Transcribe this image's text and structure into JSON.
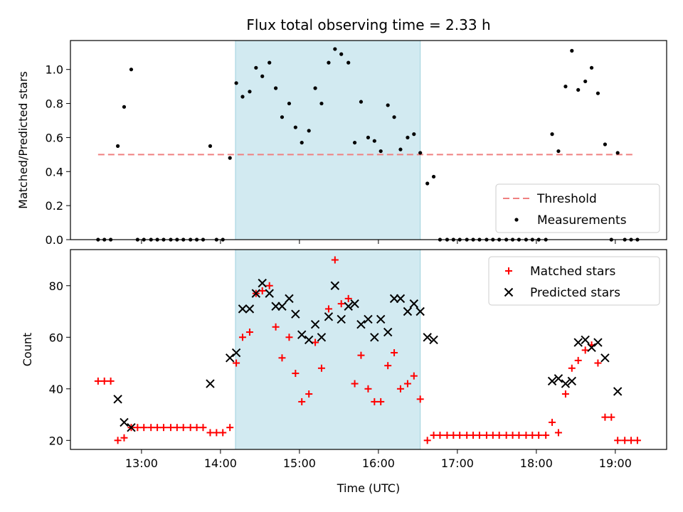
{
  "chart_data": {
    "type": "scatter",
    "title": "Flux total observing time = 2.33 h",
    "xlabel": "Time (UTC)",
    "x_tick_labels": [
      "13:00",
      "14:00",
      "15:00",
      "16:00",
      "17:00",
      "18:00",
      "19:00"
    ],
    "x_tick_values": [
      13,
      14,
      15,
      16,
      17,
      18,
      19
    ],
    "xlim": [
      12.1,
      19.65
    ],
    "highlight_span": [
      14.19,
      16.53
    ],
    "highlight_color": "#add8e6",
    "top": {
      "ylabel": "Matched/Predicted stars",
      "ylim": [
        0,
        1.17
      ],
      "y_ticks": [
        0.0,
        0.2,
        0.4,
        0.6,
        0.8,
        1.0
      ],
      "y_tick_labels": [
        "0.0",
        "0.2",
        "0.4",
        "0.6",
        "0.8",
        "1.0"
      ],
      "threshold": {
        "name": "Threshold",
        "value": 0.5,
        "x_range": [
          12.45,
          19.25
        ],
        "color": "#f08080"
      },
      "legend": {
        "placement": "lower-right",
        "entries": [
          "Threshold",
          "Measurements"
        ]
      },
      "measurements": {
        "name": "Measurements",
        "color": "#000000",
        "x": [
          12.45,
          12.53,
          12.61,
          12.7,
          12.78,
          12.87,
          12.95,
          13.03,
          13.12,
          13.2,
          13.28,
          13.37,
          13.45,
          13.53,
          13.62,
          13.7,
          13.78,
          13.87,
          13.95,
          14.03,
          14.12,
          14.2,
          14.28,
          14.37,
          14.45,
          14.53,
          14.62,
          14.7,
          14.78,
          14.87,
          14.95,
          15.03,
          15.12,
          15.2,
          15.28,
          15.37,
          15.45,
          15.53,
          15.62,
          15.7,
          15.78,
          15.87,
          15.95,
          16.03,
          16.12,
          16.2,
          16.28,
          16.37,
          16.45,
          16.53,
          16.62,
          16.7,
          16.78,
          16.87,
          16.95,
          17.03,
          17.12,
          17.2,
          17.28,
          17.37,
          17.45,
          17.53,
          17.62,
          17.7,
          17.78,
          17.87,
          17.95,
          18.03,
          18.12,
          18.2,
          18.28,
          18.37,
          18.45,
          18.53,
          18.62,
          18.7,
          18.78,
          18.87,
          18.95,
          19.03,
          19.12,
          19.2,
          19.28
        ],
        "y": [
          0.0,
          0.0,
          0.0,
          0.55,
          0.78,
          1.0,
          0.0,
          0.0,
          0.0,
          0.0,
          0.0,
          0.0,
          0.0,
          0.0,
          0.0,
          0.0,
          0.0,
          0.55,
          0.0,
          0.0,
          0.48,
          0.92,
          0.84,
          0.87,
          1.01,
          0.96,
          1.04,
          0.89,
          0.72,
          0.8,
          0.66,
          0.57,
          0.64,
          0.89,
          0.8,
          1.04,
          1.12,
          1.09,
          1.04,
          0.57,
          0.81,
          0.6,
          0.58,
          0.52,
          0.79,
          0.72,
          0.53,
          0.6,
          0.62,
          0.51,
          0.33,
          0.37,
          0.0,
          0.0,
          0.0,
          0.0,
          0.0,
          0.0,
          0.0,
          0.0,
          0.0,
          0.0,
          0.0,
          0.0,
          0.0,
          0.0,
          0.0,
          0.0,
          0.0,
          0.62,
          0.52,
          0.9,
          1.11,
          0.88,
          0.93,
          1.01,
          0.86,
          0.56,
          0.0,
          0.51,
          0.0,
          0.0,
          0.0
        ]
      }
    },
    "bottom": {
      "ylabel": "Count",
      "ylim": [
        16.5,
        94
      ],
      "y_ticks": [
        20,
        40,
        60,
        80
      ],
      "y_tick_labels": [
        "20",
        "40",
        "60",
        "80"
      ],
      "legend": {
        "placement": "upper-right",
        "entries": [
          "Matched stars",
          "Predicted stars"
        ]
      },
      "matched": {
        "name": "Matched stars",
        "color": "#ff0000",
        "x": [
          12.45,
          12.53,
          12.61,
          12.7,
          12.78,
          12.87,
          12.95,
          13.03,
          13.12,
          13.2,
          13.28,
          13.37,
          13.45,
          13.53,
          13.62,
          13.7,
          13.78,
          13.87,
          13.95,
          14.03,
          14.12,
          14.2,
          14.28,
          14.37,
          14.45,
          14.53,
          14.62,
          14.7,
          14.78,
          14.87,
          14.95,
          15.03,
          15.12,
          15.2,
          15.28,
          15.37,
          15.45,
          15.53,
          15.62,
          15.7,
          15.78,
          15.87,
          15.95,
          16.03,
          16.12,
          16.2,
          16.28,
          16.37,
          16.45,
          16.53,
          16.62,
          16.7,
          16.78,
          16.87,
          16.95,
          17.03,
          17.12,
          17.2,
          17.28,
          17.37,
          17.45,
          17.53,
          17.62,
          17.7,
          17.78,
          17.87,
          17.95,
          18.03,
          18.12,
          18.2,
          18.28,
          18.37,
          18.45,
          18.53,
          18.62,
          18.7,
          18.78,
          18.87,
          18.95,
          19.03,
          19.12,
          19.2,
          19.28
        ],
        "y": [
          43,
          43,
          43,
          20,
          21,
          25,
          25,
          25,
          25,
          25,
          25,
          25,
          25,
          25,
          25,
          25,
          25,
          23,
          23,
          23,
          25,
          50,
          60,
          62,
          77,
          78,
          80,
          64,
          52,
          60,
          46,
          35,
          38,
          58,
          48,
          71,
          90,
          73,
          75,
          42,
          53,
          40,
          35,
          35,
          49,
          54,
          40,
          42,
          45,
          36,
          20,
          22,
          22,
          22,
          22,
          22,
          22,
          22,
          22,
          22,
          22,
          22,
          22,
          22,
          22,
          22,
          22,
          22,
          22,
          27,
          23,
          38,
          48,
          51,
          55,
          57,
          50,
          29,
          29,
          20,
          20,
          20,
          20
        ]
      },
      "predicted": {
        "name": "Predicted stars",
        "color": "#000000",
        "x": [
          12.7,
          12.78,
          12.87,
          13.87,
          14.12,
          14.2,
          14.28,
          14.37,
          14.45,
          14.53,
          14.62,
          14.7,
          14.78,
          14.87,
          14.95,
          15.03,
          15.12,
          15.2,
          15.28,
          15.37,
          15.45,
          15.53,
          15.62,
          15.7,
          15.78,
          15.87,
          15.95,
          16.03,
          16.12,
          16.2,
          16.28,
          16.37,
          16.45,
          16.53,
          16.62,
          16.7,
          18.2,
          18.28,
          18.37,
          18.45,
          18.53,
          18.62,
          18.7,
          18.78,
          18.87,
          19.03
        ],
        "y": [
          36,
          27,
          25,
          42,
          52,
          54,
          71,
          71,
          77,
          81,
          77,
          72,
          72,
          75,
          69,
          61,
          59,
          65,
          60,
          68,
          80,
          67,
          72,
          73,
          65,
          67,
          60,
          67,
          62,
          75,
          75,
          70,
          73,
          70,
          60,
          59,
          43,
          44,
          42,
          43,
          58,
          59,
          56,
          58,
          52,
          39
        ]
      }
    }
  }
}
